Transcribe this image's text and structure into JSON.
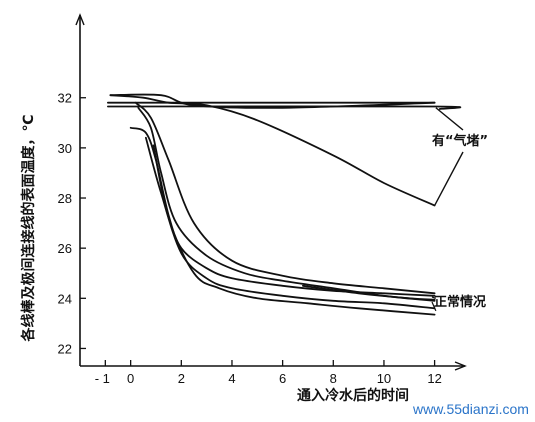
{
  "chart_data": {
    "type": "line",
    "title": "",
    "xlabel": "通入冷水后的时间",
    "ylabel": "各线棒及极间连接线的表面温度，℃",
    "xlim": [
      -2,
      13.2
    ],
    "ylim": [
      21.3,
      35.3
    ],
    "x_ticks": [
      -1,
      0,
      2,
      4,
      6,
      8,
      10,
      12
    ],
    "y_ticks": [
      22,
      24,
      26,
      28,
      30,
      32
    ],
    "grid": false,
    "series": [
      {
        "group": "air-lock",
        "points": [
          [
            -0.8,
            32.1
          ],
          [
            1.2,
            32.1
          ],
          [
            2.5,
            31.7
          ],
          [
            6,
            31.6
          ],
          [
            12,
            31.8
          ]
        ]
      },
      {
        "group": "air-lock",
        "points": [
          [
            -0.9,
            31.8
          ],
          [
            12,
            31.8
          ]
        ]
      },
      {
        "group": "air-lock",
        "points": [
          [
            -0.9,
            31.65
          ],
          [
            12,
            31.65
          ],
          [
            12.2,
            31.55
          ]
        ]
      },
      {
        "group": "air-lock",
        "points": [
          [
            -0.8,
            32.1
          ],
          [
            0.5,
            32.0
          ],
          [
            1.5,
            31.8
          ],
          [
            3,
            31.7
          ],
          [
            5,
            31.1
          ],
          [
            8,
            29.7
          ],
          [
            10,
            28.6
          ],
          [
            12,
            27.7
          ]
        ]
      },
      {
        "group": "normal",
        "points": [
          [
            0,
            30.8
          ],
          [
            0.6,
            30.6
          ],
          [
            1,
            29.5
          ],
          [
            1.5,
            27.3
          ],
          [
            2,
            26.0
          ],
          [
            3,
            25.2
          ],
          [
            4,
            24.8
          ],
          [
            6,
            24.5
          ],
          [
            8,
            24.3
          ],
          [
            10,
            24.2
          ],
          [
            12,
            24.1
          ]
        ]
      },
      {
        "group": "normal",
        "points": [
          [
            0.2,
            31.8
          ],
          [
            0.8,
            31.2
          ],
          [
            1.5,
            29.5
          ],
          [
            2.5,
            27.0
          ],
          [
            4,
            25.5
          ],
          [
            6,
            24.9
          ],
          [
            8,
            24.6
          ],
          [
            10,
            24.4
          ],
          [
            12,
            24.2
          ]
        ]
      },
      {
        "group": "normal",
        "points": [
          [
            0.3,
            31.6
          ],
          [
            0.8,
            30.8
          ],
          [
            1.2,
            29.0
          ],
          [
            1.8,
            27.0
          ],
          [
            3,
            25.7
          ],
          [
            4.5,
            25.0
          ],
          [
            6,
            24.7
          ],
          [
            8,
            24.4
          ],
          [
            10,
            24.1
          ],
          [
            12,
            23.9
          ]
        ]
      },
      {
        "group": "normal",
        "points": [
          [
            0.6,
            30.4
          ],
          [
            1.2,
            28.2
          ],
          [
            2,
            25.8
          ],
          [
            3,
            24.8
          ],
          [
            4,
            24.4
          ],
          [
            6,
            24.1
          ],
          [
            8,
            23.9
          ],
          [
            10,
            23.8
          ],
          [
            12,
            23.6
          ]
        ]
      },
      {
        "group": "normal",
        "points": [
          [
            0.9,
            30.1
          ],
          [
            1.5,
            27.2
          ],
          [
            2.5,
            25.0
          ],
          [
            3.5,
            24.4
          ],
          [
            5,
            24.0
          ],
          [
            7,
            23.8
          ],
          [
            9,
            23.6
          ],
          [
            12,
            23.35
          ]
        ]
      },
      {
        "group": "normal",
        "points": [
          [
            6.8,
            24.5
          ],
          [
            9,
            24.2
          ],
          [
            11,
            24.0
          ],
          [
            12,
            23.95
          ]
        ]
      }
    ],
    "annotations": [
      {
        "text": "有“气堵”",
        "group": "air-lock"
      },
      {
        "text": "正常情况",
        "group": "normal"
      }
    ],
    "watermark": "www.55dianzi.com"
  }
}
